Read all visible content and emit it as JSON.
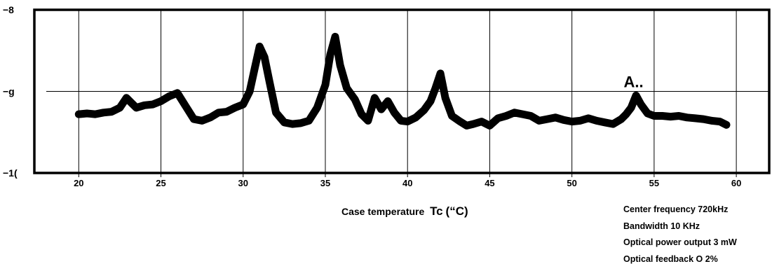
{
  "chart_data": {
    "type": "line",
    "xlabel_main": "Case temperature",
    "xlabel_symbol": "Tc",
    "xlabel_unit": "(“C)",
    "ylabel": "",
    "x_ticks": [
      "20",
      "25",
      "30",
      "35",
      "40",
      "45",
      "50",
      "55",
      "60"
    ],
    "y_ticks": [
      "−8",
      "−g",
      "−1("
    ],
    "xlim": [
      17.3,
      62.0
    ],
    "ylim": [
      -10,
      -8
    ],
    "grid": true,
    "annotation": "A..",
    "series": [
      {
        "x": [
          20.0,
          20.5,
          21.0,
          21.5,
          22.0,
          22.5,
          22.9,
          23.2,
          23.5,
          24.0,
          24.5,
          25.0,
          25.5,
          26.0,
          26.5,
          27.0,
          27.5,
          28.0,
          28.5,
          29.0,
          29.5,
          30.0,
          30.4,
          30.7,
          31.0,
          31.3,
          31.6,
          32.0,
          32.5,
          33.0,
          33.5,
          34.0,
          34.5,
          35.0,
          35.3,
          35.6,
          35.9,
          36.3,
          36.8,
          37.2,
          37.6,
          38.0,
          38.4,
          38.8,
          39.2,
          39.6,
          40.0,
          40.5,
          41.0,
          41.4,
          41.7,
          42.0,
          42.3,
          42.7,
          43.2,
          43.6,
          44.0,
          44.5,
          45.0,
          45.5,
          46.0,
          46.5,
          47.0,
          47.5,
          48.0,
          48.5,
          49.0,
          49.5,
          50.0,
          50.5,
          51.0,
          51.5,
          52.0,
          52.5,
          53.0,
          53.3,
          53.6,
          53.9,
          54.2,
          54.6,
          55.0,
          55.5,
          56.0,
          56.5,
          57.0,
          57.5,
          58.0,
          58.5,
          59.0,
          59.4
        ],
        "y": [
          -9.28,
          -9.27,
          -9.28,
          -9.26,
          -9.25,
          -9.2,
          -9.08,
          -9.14,
          -9.2,
          -9.17,
          -9.16,
          -9.12,
          -9.06,
          -9.02,
          -9.18,
          -9.34,
          -9.36,
          -9.32,
          -9.26,
          -9.25,
          -9.2,
          -9.16,
          -9.0,
          -8.72,
          -8.45,
          -8.58,
          -8.88,
          -9.26,
          -9.38,
          -9.4,
          -9.39,
          -9.36,
          -9.2,
          -8.92,
          -8.55,
          -8.33,
          -8.68,
          -8.96,
          -9.1,
          -9.28,
          -9.36,
          -9.08,
          -9.22,
          -9.12,
          -9.26,
          -9.36,
          -9.37,
          -9.32,
          -9.23,
          -9.12,
          -8.96,
          -8.78,
          -9.08,
          -9.3,
          -9.37,
          -9.42,
          -9.4,
          -9.37,
          -9.42,
          -9.33,
          -9.3,
          -9.26,
          -9.28,
          -9.3,
          -9.36,
          -9.34,
          -9.32,
          -9.35,
          -9.37,
          -9.36,
          -9.33,
          -9.36,
          -9.38,
          -9.4,
          -9.34,
          -9.28,
          -9.2,
          -9.05,
          -9.16,
          -9.27,
          -9.3,
          -9.3,
          -9.31,
          -9.3,
          -9.32,
          -9.33,
          -9.34,
          -9.36,
          -9.37,
          -9.41
        ]
      }
    ]
  },
  "notes": [
    "Center  frequency  720kHz",
    "Bandwidth  10  KHz",
    "Optical power output 3 mW",
    "Optical  feedback  O  2%"
  ],
  "colors": {
    "ink": "#000000",
    "background": "#ffffff"
  }
}
